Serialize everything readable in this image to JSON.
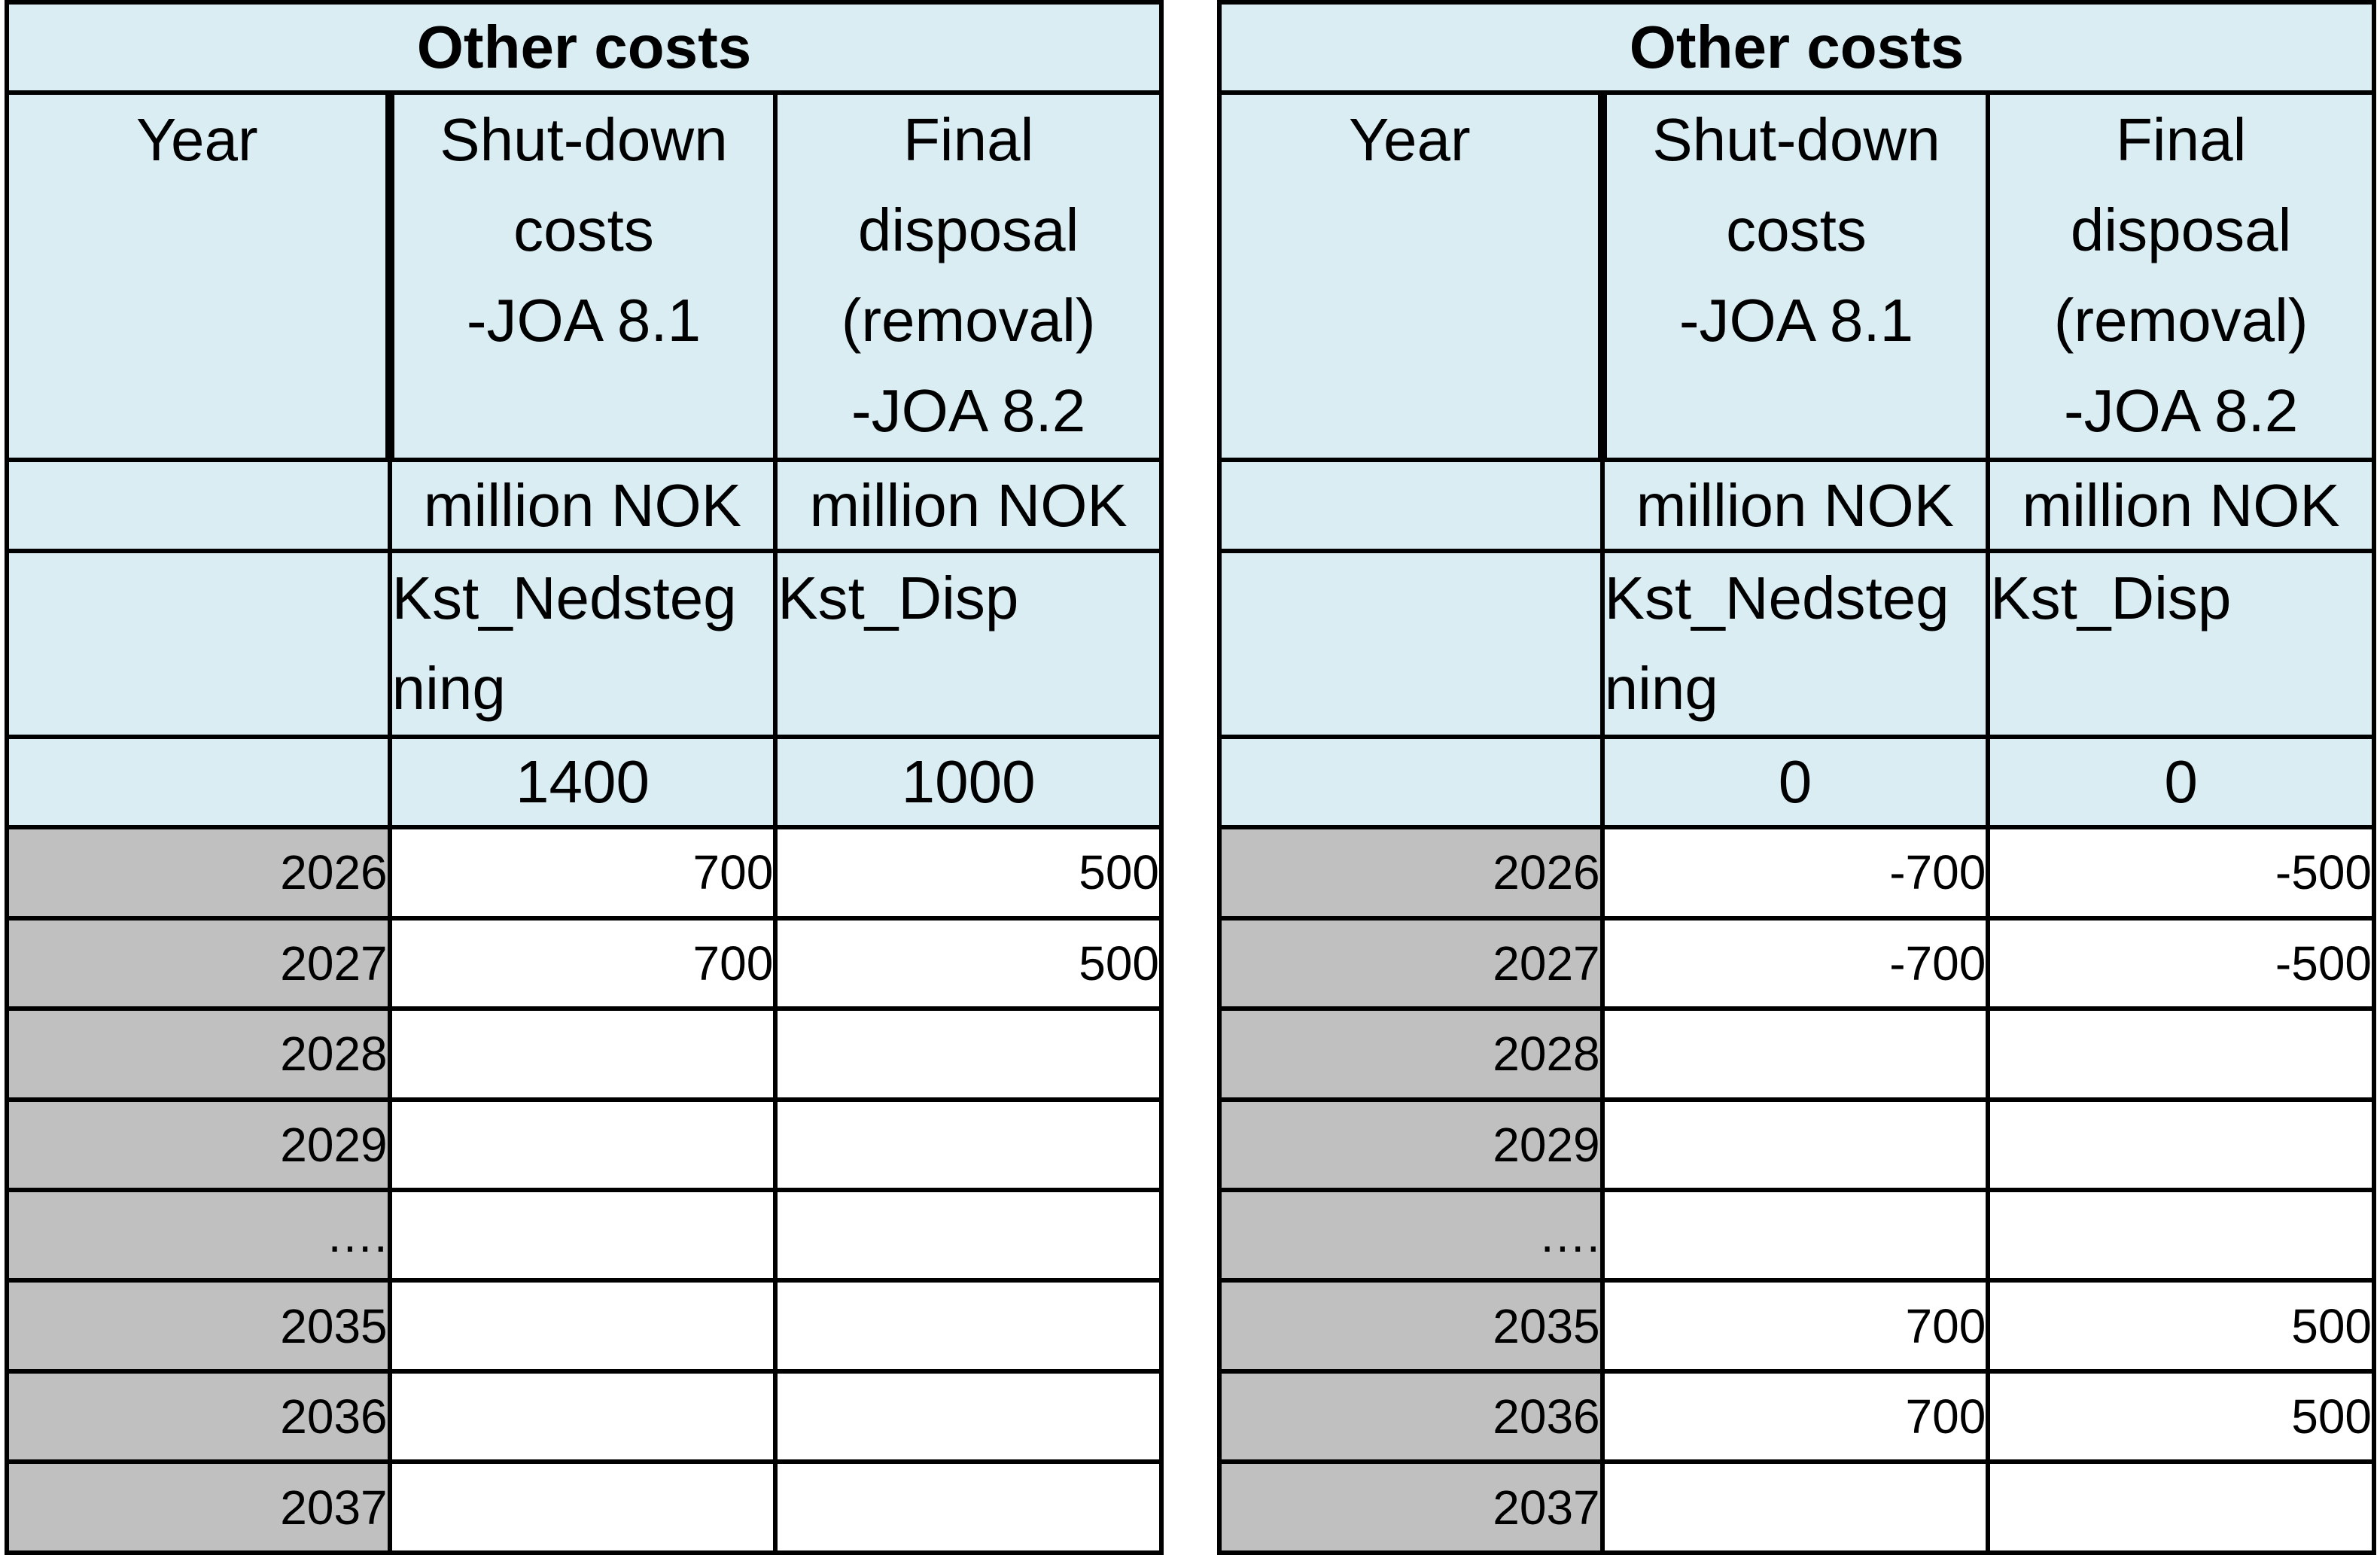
{
  "tables": [
    {
      "title": "Other costs",
      "headers": {
        "year": "Year",
        "col_a": [
          "Shut-down",
          "costs",
          "-JOA 8.1"
        ],
        "col_b": [
          "Final",
          "disposal",
          "(removal)",
          "-JOA 8.2"
        ]
      },
      "units": {
        "year": "",
        "col_a": "million NOK",
        "col_b": "million NOK"
      },
      "codes": {
        "col_a": [
          "Kst_Nedsteg",
          "ning"
        ],
        "col_b": [
          "Kst_Disp"
        ]
      },
      "totals": {
        "col_a": "1400",
        "col_b": "1000"
      },
      "rows": [
        {
          "year": "2026",
          "a": "700",
          "b": "500"
        },
        {
          "year": "2027",
          "a": "700",
          "b": "500"
        },
        {
          "year": "2028",
          "a": "",
          "b": ""
        },
        {
          "year": "2029",
          "a": "",
          "b": ""
        },
        {
          "year": "….",
          "a": "",
          "b": ""
        },
        {
          "year": "2035",
          "a": "",
          "b": ""
        },
        {
          "year": "2036",
          "a": "",
          "b": ""
        },
        {
          "year": "2037",
          "a": "",
          "b": ""
        }
      ]
    },
    {
      "title": "Other costs",
      "headers": {
        "year": "Year",
        "col_a": [
          "Shut-down",
          "costs",
          "-JOA 8.1"
        ],
        "col_b": [
          "Final",
          "disposal",
          "(removal)",
          "-JOA 8.2"
        ]
      },
      "units": {
        "year": "",
        "col_a": "million NOK",
        "col_b": "million NOK"
      },
      "codes": {
        "col_a": [
          "Kst_Nedsteg",
          "ning"
        ],
        "col_b": [
          "Kst_Disp"
        ]
      },
      "totals": {
        "col_a": "0",
        "col_b": "0"
      },
      "rows": [
        {
          "year": "2026",
          "a": "-700",
          "b": "-500"
        },
        {
          "year": "2027",
          "a": "-700",
          "b": "-500"
        },
        {
          "year": "2028",
          "a": "",
          "b": ""
        },
        {
          "year": "2029",
          "a": "",
          "b": ""
        },
        {
          "year": "….",
          "a": "",
          "b": ""
        },
        {
          "year": "2035",
          "a": "700",
          "b": "500"
        },
        {
          "year": "2036",
          "a": "700",
          "b": "500"
        },
        {
          "year": "2037",
          "a": "",
          "b": ""
        }
      ]
    }
  ]
}
